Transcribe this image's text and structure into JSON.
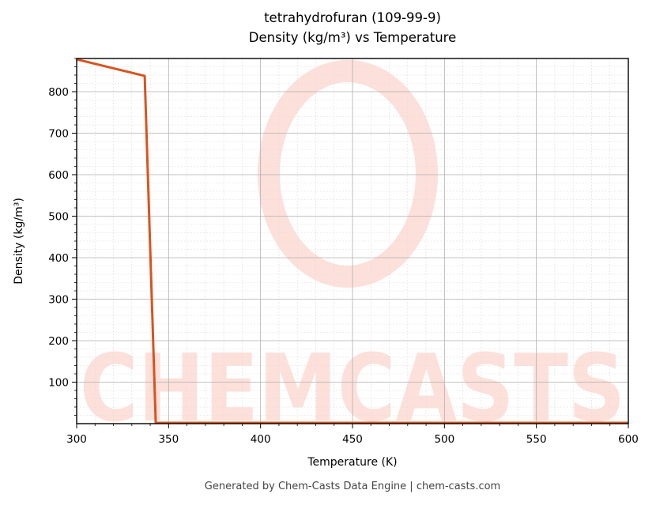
{
  "header": {
    "title_line1": "tetrahydrofuran (109-99-9)",
    "title_line2": "Density (kg/m³) vs Temperature"
  },
  "footer": {
    "text": "Generated by Chem-Casts Data Engine | chem-casts.com"
  },
  "watermark": {
    "text": "CHEMCASTS",
    "color": "#fde0da"
  },
  "colors": {
    "line": "#d9531e",
    "grid_major": "#b0b0b0",
    "grid_minor": "#dddddd"
  },
  "chart_data": {
    "type": "line",
    "title": "tetrahydrofuran (109-99-9)\nDensity (kg/m³) vs Temperature",
    "xlabel": "Temperature (K)",
    "ylabel": "Density (kg/m³)",
    "xlim": [
      300,
      600
    ],
    "ylim": [
      0,
      880
    ],
    "xticks": [
      300,
      350,
      400,
      450,
      500,
      550,
      600
    ],
    "yticks": [
      100,
      200,
      300,
      400,
      500,
      600,
      700,
      800
    ],
    "grid": true,
    "legend": null,
    "series": [
      {
        "name": "Density",
        "x": [
          300,
          337,
          343,
          600
        ],
        "y": [
          878,
          838,
          2,
          2
        ]
      }
    ]
  }
}
